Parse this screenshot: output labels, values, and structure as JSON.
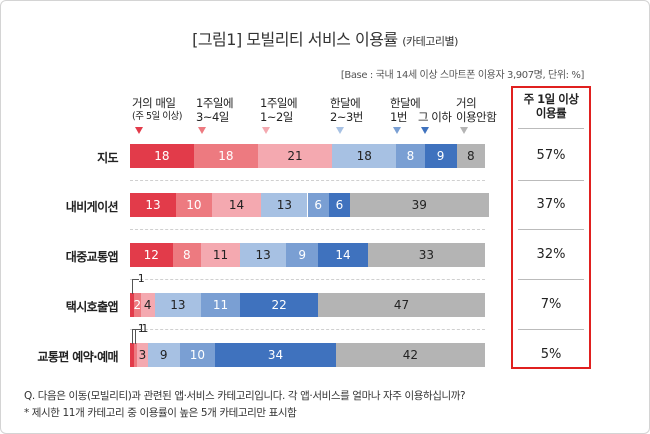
{
  "title": "[그림1] 모빌리티 서비스 이용률",
  "title_sub": "(카테고리별)",
  "base_note": "[Base : 국내 14세 이상 스마트폰 이용자 3,907명, 단위: %]",
  "categories": [
    {
      "line1": "거의 매일",
      "line2": "(주 5일 이상)",
      "color": "#e23b4a"
    },
    {
      "line1": "1주일에",
      "line2": "3~4일",
      "color": "#ed7a80"
    },
    {
      "line1": "1주일에",
      "line2": "1~2일",
      "color": "#f4a9b0"
    },
    {
      "line1": "한달에",
      "line2": "2~3번",
      "color": "#a7c1e3"
    },
    {
      "line1": "한달에",
      "line2": "1번",
      "color": "#7a9fd3"
    },
    {
      "line1": "그 이하",
      "line2": "",
      "color": "#3f72be"
    },
    {
      "line1": "거의",
      "line2": "이용안함",
      "color": "#b4b4b4"
    }
  ],
  "weekly_header_line1": "주 1일 이상",
  "weekly_header_line2": "이용률",
  "chart_data": {
    "type": "bar",
    "orientation": "horizontal-stacked-100",
    "categories": [
      "지도",
      "내비게이션",
      "대중교통앱",
      "택시호출앱",
      "교통편 예약·예매"
    ],
    "series": [
      {
        "name": "거의 매일 (주 5일 이상)",
        "values": [
          18,
          13,
          12,
          1,
          1
        ]
      },
      {
        "name": "1주일에 3~4일",
        "values": [
          18,
          10,
          8,
          2,
          1
        ]
      },
      {
        "name": "1주일에 1~2일",
        "values": [
          21,
          14,
          11,
          4,
          3
        ]
      },
      {
        "name": "한달에 2~3번",
        "values": [
          18,
          13,
          13,
          13,
          9
        ]
      },
      {
        "name": "한달에 1번",
        "values": [
          8,
          6,
          9,
          11,
          10
        ]
      },
      {
        "name": "그 이하",
        "values": [
          9,
          6,
          14,
          22,
          34
        ]
      },
      {
        "name": "거의 이용안함",
        "values": [
          8,
          39,
          33,
          47,
          42
        ]
      }
    ],
    "weekly_rate": [
      "57%",
      "37%",
      "32%",
      "7%",
      "5%"
    ],
    "xlim": [
      0,
      100
    ],
    "unit": "%"
  },
  "footnote1": "Q. 다음은 이동(모빌리티)과 관련된 앱·서비스 카테고리입니다. 각 앱·서비스를 얼마나 자주 이용하십니까?",
  "footnote2": "* 제시한 11개 카테고리 중 이용률이 높은 5개 카테고리만 표시함"
}
